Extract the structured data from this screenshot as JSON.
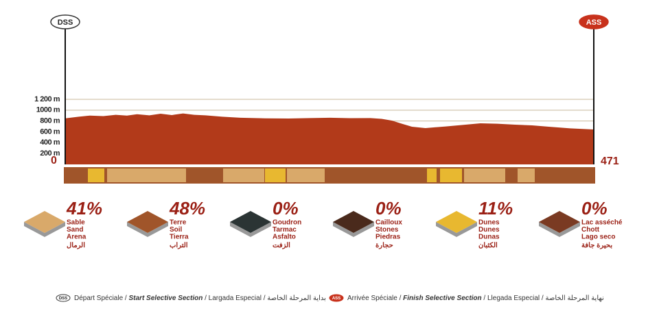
{
  "chart_data": {
    "type": "area",
    "color": "#b23a1a",
    "x": [
      0,
      12,
      22,
      34,
      45,
      55,
      64,
      75,
      85,
      95,
      105,
      115,
      125,
      140,
      156,
      178,
      199,
      218,
      236,
      254,
      272,
      282,
      291,
      300,
      309,
      321,
      339,
      355,
      370,
      385,
      401,
      416,
      431,
      450,
      471
    ],
    "values": [
      850,
      880,
      900,
      890,
      915,
      900,
      925,
      905,
      935,
      910,
      940,
      915,
      905,
      880,
      860,
      850,
      846,
      855,
      860,
      852,
      855,
      840,
      808,
      750,
      695,
      669,
      700,
      730,
      758,
      750,
      733,
      720,
      695,
      665,
      644
    ],
    "xlim": [
      0,
      471
    ],
    "xticks": [
      0,
      471
    ],
    "ylim": [
      0,
      1200
    ],
    "yticks": [
      {
        "value": 200,
        "label": "200 m"
      },
      {
        "value": 400,
        "label": "400 m"
      },
      {
        "value": 600,
        "label": "600 m"
      },
      {
        "value": 800,
        "label": "800 m"
      },
      {
        "value": 1000,
        "label": "1000 m"
      },
      {
        "value": 1200,
        "label": "1 200 m"
      }
    ],
    "grid": true,
    "start_marker": "DSS",
    "end_marker": "ASS"
  },
  "surfaces": [
    {
      "percent": "41%",
      "names": [
        "Sable",
        "Sand",
        "Arena",
        "الرمال"
      ],
      "color": "#d9a96a"
    },
    {
      "percent": "48%",
      "names": [
        "Terre",
        "Soil",
        "Tierra",
        "التراب"
      ],
      "color": "#a0552a"
    },
    {
      "percent": "0%",
      "names": [
        "Goudron",
        "Tarmac",
        "Asfalto",
        "الزفت"
      ],
      "color": "#2b3434"
    },
    {
      "percent": "0%",
      "names": [
        "Cailloux",
        "Stones",
        "Piedras",
        "حجارة"
      ],
      "color": "#4a2a1c"
    },
    {
      "percent": "11%",
      "names": [
        "Dunes",
        "Dunes",
        "Dunas",
        "الكثبان"
      ],
      "color": "#e8b830"
    },
    {
      "percent": "0%",
      "names": [
        "Lac asséché",
        "Chott",
        "Lago seco",
        "بحيرة جافة"
      ],
      "color": "#7a3a22"
    }
  ],
  "footer": [
    {
      "badge": "DSS",
      "parts": [
        "Départ Spéciale / ",
        "Start Selective Section",
        " / Largada Especial / ",
        "بداية المرحلة الخاصة"
      ]
    },
    {
      "badge": "ASS",
      "parts": [
        "Arrivée Spéciale / ",
        "Finish Selective Section",
        " / Llegada Especial / ",
        "نهاية المرحلة الخاصة"
      ]
    }
  ]
}
